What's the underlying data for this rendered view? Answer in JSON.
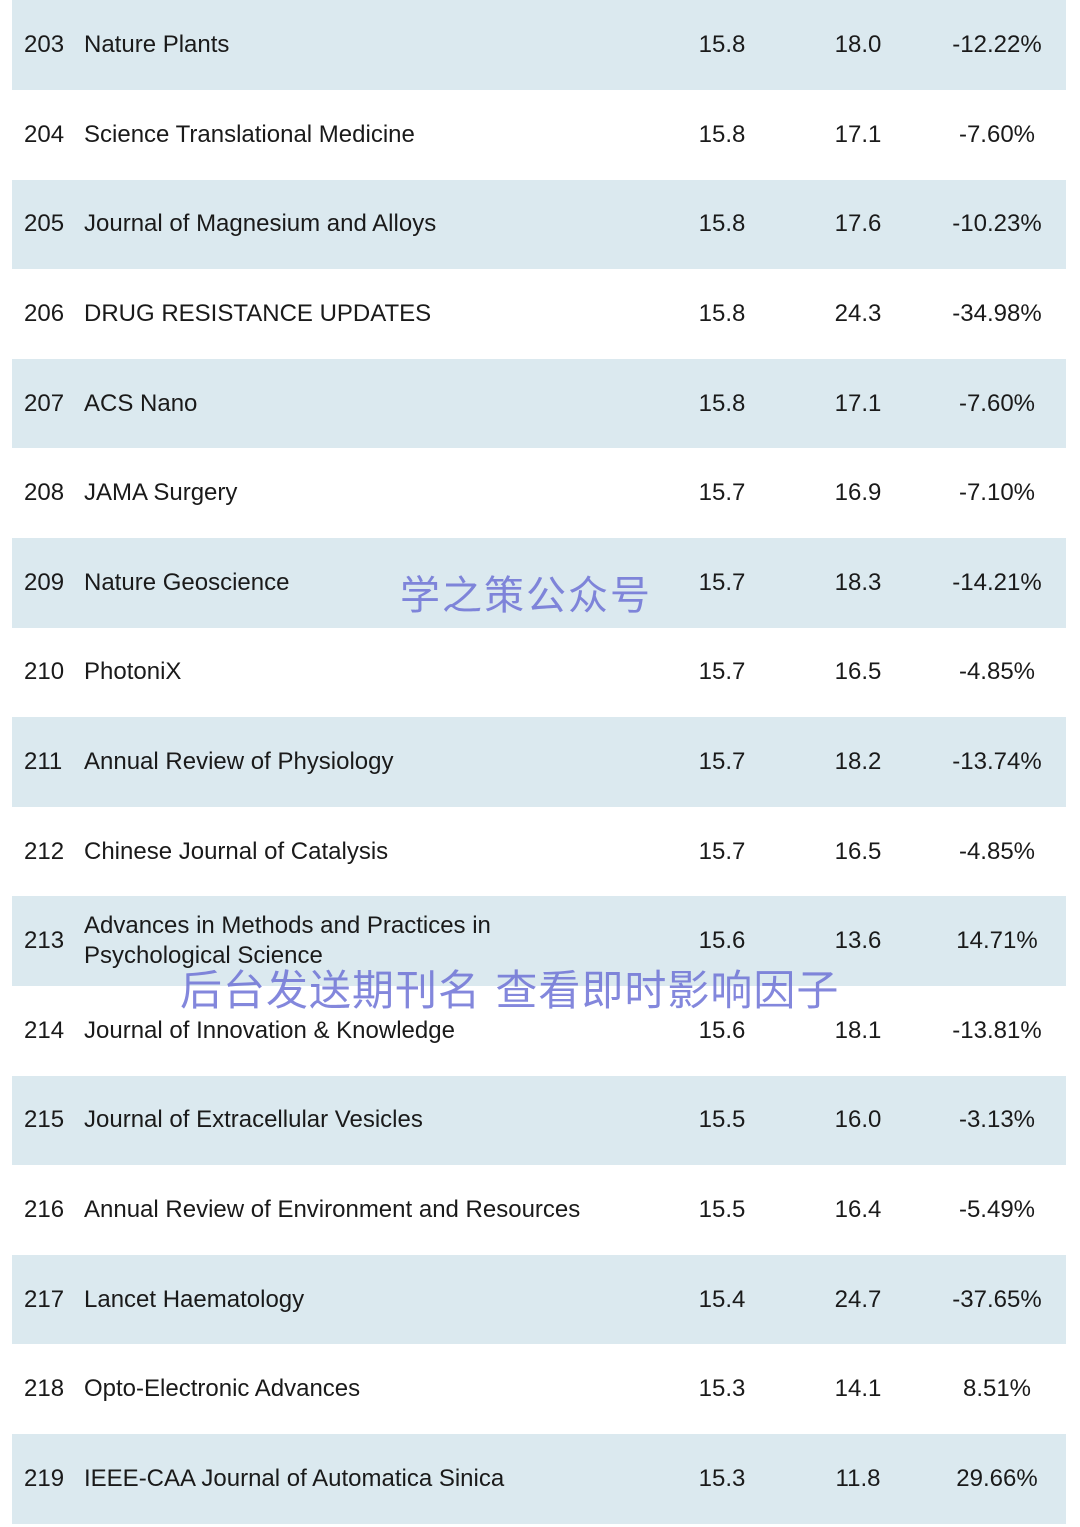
{
  "rows": [
    {
      "rank": "203",
      "journal": "Nature Plants",
      "if_2023": "15.8",
      "if_2022": "18.0",
      "change": "-12.22%"
    },
    {
      "rank": "204",
      "journal": "Science Translational Medicine",
      "if_2023": "15.8",
      "if_2022": "17.1",
      "change": "-7.60%"
    },
    {
      "rank": "205",
      "journal": "Journal of Magnesium and Alloys",
      "if_2023": "15.8",
      "if_2022": "17.6",
      "change": "-10.23%"
    },
    {
      "rank": "206",
      "journal": "DRUG RESISTANCE UPDATES",
      "if_2023": "15.8",
      "if_2022": "24.3",
      "change": "-34.98%"
    },
    {
      "rank": "207",
      "journal": "ACS Nano",
      "if_2023": "15.8",
      "if_2022": "17.1",
      "change": "-7.60%"
    },
    {
      "rank": "208",
      "journal": "JAMA Surgery",
      "if_2023": "15.7",
      "if_2022": "16.9",
      "change": "-7.10%"
    },
    {
      "rank": "209",
      "journal": "Nature Geoscience",
      "if_2023": "15.7",
      "if_2022": "18.3",
      "change": "-14.21%"
    },
    {
      "rank": "210",
      "journal": "PhotoniX",
      "if_2023": "15.7",
      "if_2022": "16.5",
      "change": "-4.85%"
    },
    {
      "rank": "211",
      "journal": "Annual Review of Physiology",
      "if_2023": "15.7",
      "if_2022": "18.2",
      "change": "-13.74%"
    },
    {
      "rank": "212",
      "journal": "Chinese Journal of Catalysis",
      "if_2023": "15.7",
      "if_2022": "16.5",
      "change": "-4.85%"
    },
    {
      "rank": "213",
      "journal": "Advances in Methods and Practices in Psychological Science",
      "if_2023": "15.6",
      "if_2022": "13.6",
      "change": "14.71%"
    },
    {
      "rank": "214",
      "journal": "Journal of Innovation & Knowledge",
      "if_2023": "15.6",
      "if_2022": "18.1",
      "change": "-13.81%"
    },
    {
      "rank": "215",
      "journal": "Journal of Extracellular Vesicles",
      "if_2023": "15.5",
      "if_2022": "16.0",
      "change": "-3.13%"
    },
    {
      "rank": "216",
      "journal": "Annual Review of Environment and Resources",
      "if_2023": "15.5",
      "if_2022": "16.4",
      "change": "-5.49%"
    },
    {
      "rank": "217",
      "journal": "Lancet Haematology",
      "if_2023": "15.4",
      "if_2022": "24.7",
      "change": "-37.65%"
    },
    {
      "rank": "218",
      "journal": "Opto-Electronic Advances",
      "if_2023": "15.3",
      "if_2022": "14.1",
      "change": "8.51%"
    },
    {
      "rank": "219",
      "journal": "IEEE-CAA Journal of Automatica Sinica",
      "if_2023": "15.3",
      "if_2022": "11.8",
      "change": "29.66%"
    }
  ],
  "watermarks": {
    "account": "学之策公众号",
    "instruction": "后台发送期刊名 查看即时影响因子"
  },
  "colors": {
    "row_shade": "#dbe9ef",
    "watermark": "#6e73d6"
  }
}
